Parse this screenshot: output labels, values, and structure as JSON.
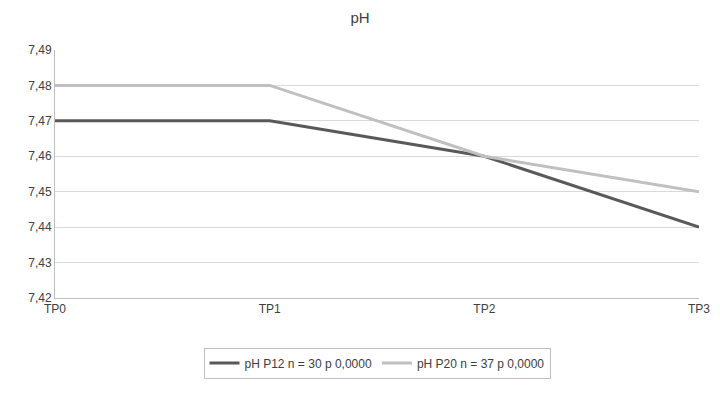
{
  "chart_data": {
    "type": "line",
    "title": "pH",
    "categories": [
      "TP0",
      "TP1",
      "TP2",
      "TP3"
    ],
    "series": [
      {
        "name": "pH P12 n = 30 p 0,0000",
        "color": "#595959",
        "values": [
          7.47,
          7.47,
          7.46,
          7.44
        ]
      },
      {
        "name": "pH P20 n = 37 p 0,0000",
        "color": "#c0c0c0",
        "values": [
          7.48,
          7.48,
          7.46,
          7.45
        ]
      }
    ],
    "ylim": [
      7.42,
      7.49
    ],
    "yticks": [
      {
        "value": 7.42,
        "label": "7,42"
      },
      {
        "value": 7.43,
        "label": "7,43"
      },
      {
        "value": 7.44,
        "label": "7,44"
      },
      {
        "value": 7.45,
        "label": "7,45"
      },
      {
        "value": 7.46,
        "label": "7,46"
      },
      {
        "value": 7.47,
        "label": "7,47"
      },
      {
        "value": 7.48,
        "label": "7,48"
      },
      {
        "value": 7.49,
        "label": "7,49"
      }
    ],
    "grid": true,
    "legend": "bottom"
  }
}
